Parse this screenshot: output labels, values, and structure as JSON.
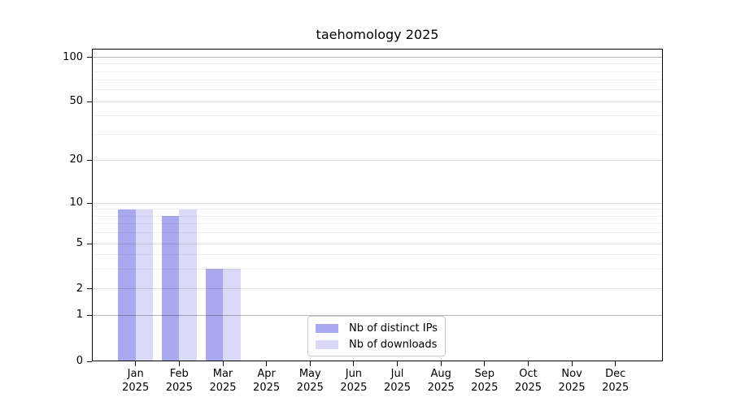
{
  "title": "taehomology 2025",
  "chart_data": {
    "type": "bar",
    "title": "taehomology 2025",
    "categories": [
      "Jan",
      "Feb",
      "Mar",
      "Apr",
      "May",
      "Jun",
      "Jul",
      "Aug",
      "Sep",
      "Oct",
      "Nov",
      "Dec"
    ],
    "category_year": "2025",
    "series": [
      {
        "name": "Nb of distinct IPs",
        "color": "#a9a9f0",
        "values": [
          9,
          8,
          3,
          0,
          0,
          0,
          0,
          0,
          0,
          0,
          0,
          0
        ]
      },
      {
        "name": "Nb of downloads",
        "color": "#dadaf8",
        "values": [
          9,
          9,
          3,
          0,
          0,
          0,
          0,
          0,
          0,
          0,
          0,
          0
        ]
      }
    ],
    "y_axis": {
      "major_ticks": [
        0,
        1,
        2,
        5,
        10,
        20,
        50,
        100
      ],
      "minor_ticks": [
        3,
        4,
        6,
        7,
        8,
        9,
        30,
        40,
        60,
        70,
        80,
        90
      ],
      "scale": "log-like (linear below 1)",
      "ylim": [
        0,
        115
      ]
    },
    "x_axis": {
      "tick_label_lines": 2
    },
    "legend": {
      "position": "lower center",
      "entries": [
        "Nb of distinct IPs",
        "Nb of downloads"
      ]
    },
    "grid": "both",
    "colors": {
      "background": "#ffffff",
      "spine": "#000000"
    }
  }
}
